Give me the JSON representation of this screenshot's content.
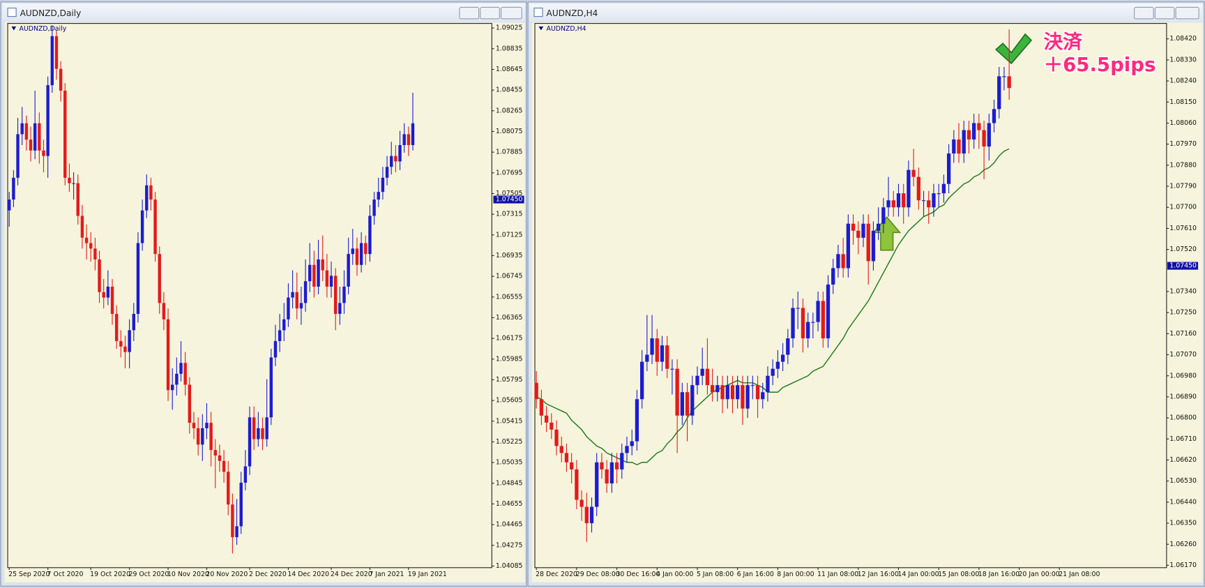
{
  "chart_data": [
    {
      "type": "candlestick",
      "title": "AUDNZD,Daily",
      "up_color": "#1c1ccf",
      "down_color": "#e31b1b",
      "xlim": [
        -0.36,
        112.4
      ],
      "ylim": [
        1.0407,
        1.09067
      ],
      "xticks": [
        {
          "value": 0,
          "label": "25 Sep 2020"
        },
        {
          "value": 9,
          "label": "7 Oct 2020"
        },
        {
          "value": 19,
          "label": "19 Oct 2020"
        },
        {
          "value": 28,
          "label": "29 Oct 2020"
        },
        {
          "value": 37,
          "label": "10 Nov 2020"
        },
        {
          "value": 46,
          "label": "20 Nov 2020"
        },
        {
          "value": 56,
          "label": "2 Dec 2020"
        },
        {
          "value": 65,
          "label": "14 Dec 2020"
        },
        {
          "value": 75,
          "label": "24 Dec 2020"
        },
        {
          "value": 84,
          "label": "7 Jan 2021"
        },
        {
          "value": 93,
          "label": "19 Jan 2021"
        }
      ],
      "yticks": [
        1.09025,
        1.08835,
        1.08645,
        1.08455,
        1.08265,
        1.08075,
        1.07885,
        1.07695,
        1.07505,
        1.07315,
        1.07125,
        1.06935,
        1.06745,
        1.06555,
        1.06365,
        1.06175,
        1.05985,
        1.05795,
        1.05605,
        1.05415,
        1.05225,
        1.05035,
        1.04845,
        1.04655,
        1.04465,
        1.04275,
        1.04085
      ],
      "price_label": {
        "value": 1.0745,
        "label": "1.07450"
      },
      "open": [
        1.0735,
        1.0745,
        1.0765,
        1.0805,
        1.0815,
        1.08,
        1.079,
        1.0815,
        1.079,
        1.0785,
        1.085,
        1.0895,
        1.0865,
        1.0845,
        1.0765,
        1.076,
        1.076,
        1.073,
        1.071,
        1.0705,
        1.07,
        1.069,
        1.066,
        1.0655,
        1.0665,
        1.064,
        1.0615,
        1.061,
        1.0605,
        1.0625,
        1.064,
        1.0705,
        1.0735,
        1.0758,
        1.0745,
        1.0695,
        1.065,
        1.0635,
        1.057,
        1.0575,
        1.0585,
        1.0595,
        1.0575,
        1.054,
        1.0535,
        1.052,
        1.0535,
        1.054,
        1.0515,
        1.051,
        1.0505,
        1.0495,
        1.0465,
        1.0435,
        1.0445,
        1.0485,
        1.05,
        1.0545,
        1.0525,
        1.0535,
        1.0525,
        1.0545,
        1.06,
        1.0615,
        1.0625,
        1.0635,
        1.0655,
        1.066,
        1.0645,
        1.065,
        1.067,
        1.0685,
        1.0665,
        1.069,
        1.068,
        1.0665,
        1.0675,
        1.064,
        1.065,
        1.0665,
        1.0695,
        1.07,
        1.0685,
        1.0705,
        1.0695,
        1.073,
        1.0745,
        1.0752,
        1.0765,
        1.0775,
        1.0785,
        1.078,
        1.0795,
        1.0805,
        1.0795
      ],
      "high": [
        1.0752,
        1.0772,
        1.082,
        1.083,
        1.0822,
        1.0812,
        1.0845,
        1.0825,
        1.08,
        1.0858,
        1.0905,
        1.09,
        1.0872,
        1.0852,
        1.0778,
        1.077,
        1.0768,
        1.074,
        1.0722,
        1.0715,
        1.071,
        1.0698,
        1.0672,
        1.068,
        1.0672,
        1.0648,
        1.0625,
        1.062,
        1.0635,
        1.065,
        1.0715,
        1.0745,
        1.0768,
        1.0765,
        1.0752,
        1.0702,
        1.066,
        1.0645,
        1.059,
        1.06,
        1.0615,
        1.0605,
        1.0582,
        1.055,
        1.0545,
        1.0548,
        1.0558,
        1.055,
        1.0525,
        1.052,
        1.0515,
        1.0505,
        1.0475,
        1.047,
        1.0495,
        1.0515,
        1.0555,
        1.0555,
        1.055,
        1.0545,
        1.058,
        1.0608,
        1.063,
        1.064,
        1.065,
        1.0668,
        1.068,
        1.0678,
        1.0665,
        1.069,
        1.0705,
        1.0698,
        1.0708,
        1.0712,
        1.0695,
        1.0688,
        1.0682,
        1.0665,
        1.068,
        1.071,
        1.0718,
        1.071,
        1.0715,
        1.0712,
        1.074,
        1.0752,
        1.0765,
        1.0775,
        1.0785,
        1.0798,
        1.0795,
        1.0808,
        1.0815,
        1.0812,
        1.0843
      ],
      "low": [
        1.072,
        1.0738,
        1.0758,
        1.0795,
        1.079,
        1.078,
        1.0782,
        1.0778,
        1.077,
        1.0765,
        1.0843,
        1.0855,
        1.0835,
        1.0758,
        1.0752,
        1.0745,
        1.0722,
        1.07,
        1.069,
        1.0688,
        1.068,
        1.065,
        1.0645,
        1.0648,
        1.063,
        1.0608,
        1.06,
        1.059,
        1.059,
        1.0615,
        1.0632,
        1.0698,
        1.0728,
        1.0735,
        1.0688,
        1.064,
        1.0625,
        1.056,
        1.0552,
        1.0565,
        1.0578,
        1.0565,
        1.053,
        1.0525,
        1.051,
        1.0505,
        1.0525,
        1.05,
        1.048,
        1.0495,
        1.0485,
        1.0455,
        1.042,
        1.0428,
        1.0438,
        1.0478,
        1.0492,
        1.0515,
        1.0518,
        1.0515,
        1.0518,
        1.0538,
        1.0592,
        1.0605,
        1.0615,
        1.0628,
        1.0645,
        1.0635,
        1.063,
        1.0642,
        1.066,
        1.0655,
        1.0658,
        1.067,
        1.0655,
        1.0655,
        1.0625,
        1.063,
        1.064,
        1.0658,
        1.0685,
        1.0675,
        1.0678,
        1.0685,
        1.0688,
        1.0722,
        1.0738,
        1.0745,
        1.0758,
        1.0768,
        1.077,
        1.0772,
        1.0788,
        1.0785,
        1.079
      ],
      "close": [
        1.0745,
        1.0765,
        1.0805,
        1.0815,
        1.08,
        1.079,
        1.0815,
        1.079,
        1.0785,
        1.085,
        1.0895,
        1.0865,
        1.0845,
        1.0765,
        1.076,
        1.076,
        1.073,
        1.071,
        1.0705,
        1.07,
        1.069,
        1.066,
        1.0655,
        1.0665,
        1.064,
        1.0615,
        1.061,
        1.0605,
        1.0625,
        1.064,
        1.0705,
        1.0735,
        1.0758,
        1.0745,
        1.0695,
        1.065,
        1.0635,
        1.057,
        1.0575,
        1.0585,
        1.0595,
        1.0575,
        1.054,
        1.0535,
        1.052,
        1.0535,
        1.054,
        1.0515,
        1.051,
        1.0505,
        1.0495,
        1.0465,
        1.0435,
        1.0445,
        1.0485,
        1.05,
        1.0545,
        1.0525,
        1.0535,
        1.0525,
        1.0545,
        1.06,
        1.0615,
        1.0625,
        1.0635,
        1.0655,
        1.066,
        1.0645,
        1.065,
        1.067,
        1.0685,
        1.0665,
        1.069,
        1.068,
        1.0665,
        1.0675,
        1.064,
        1.065,
        1.0665,
        1.0695,
        1.07,
        1.0685,
        1.0705,
        1.0695,
        1.073,
        1.0745,
        1.0752,
        1.0765,
        1.0775,
        1.0785,
        1.078,
        1.0795,
        1.0805,
        1.0795,
        1.0815
      ]
    },
    {
      "type": "candlestick",
      "title": "AUDNZD,H4",
      "up_color": "#1c1ccf",
      "down_color": "#e31b1b",
      "xlim": [
        -0.3,
        125.3
      ],
      "ylim": [
        1.0616,
        1.08486
      ],
      "xticks": [
        {
          "value": 0,
          "label": "28 Dec 2020"
        },
        {
          "value": 8,
          "label": "29 Dec 08:00"
        },
        {
          "value": 16,
          "label": "30 Dec 16:00"
        },
        {
          "value": 24,
          "label": "4 Jan 00:00"
        },
        {
          "value": 32,
          "label": "5 Jan 08:00"
        },
        {
          "value": 40,
          "label": "6 Jan 16:00"
        },
        {
          "value": 48,
          "label": "8 Jan 00:00"
        },
        {
          "value": 56,
          "label": "11 Jan 08:00"
        },
        {
          "value": 64,
          "label": "12 Jan 16:00"
        },
        {
          "value": 72,
          "label": "14 Jan 00:00"
        },
        {
          "value": 80,
          "label": "15 Jan 08:00"
        },
        {
          "value": 88,
          "label": "18 Jan 16:00"
        },
        {
          "value": 96,
          "label": "20 Jan 00:00"
        },
        {
          "value": 104,
          "label": "21 Jan 08:00"
        }
      ],
      "yticks": [
        {
          "value": 1.0842,
          "label": "1.08420"
        },
        {
          "value": 1.0833,
          "label": "1.08330"
        },
        {
          "value": 1.0824,
          "label": "1.08240"
        },
        {
          "value": 1.0815,
          "label": "1.08150"
        },
        {
          "value": 1.0806,
          "label": "1.08060"
        },
        {
          "value": 1.0797,
          "label": "1.07970"
        },
        {
          "value": 1.0788,
          "label": "1.07880"
        },
        {
          "value": 1.0779,
          "label": "1.07790"
        },
        {
          "value": 1.077,
          "label": "1.07700"
        },
        {
          "value": 1.0761,
          "label": "1.07610"
        },
        {
          "value": 1.0752,
          "label": "1.07520"
        },
        {
          "value": 1.0734,
          "label": "1.07340"
        },
        {
          "value": 1.0725,
          "label": "1.07250"
        },
        {
          "value": 1.0716,
          "label": "1.07160"
        },
        {
          "value": 1.0707,
          "label": "1.07070"
        },
        {
          "value": 1.0698,
          "label": "1.06980"
        },
        {
          "value": 1.0689,
          "label": "1.06890"
        },
        {
          "value": 1.068,
          "label": "1.06800"
        },
        {
          "value": 1.0671,
          "label": "1.06710"
        },
        {
          "value": 1.0662,
          "label": "1.06620"
        },
        {
          "value": 1.0653,
          "label": "1.06530"
        },
        {
          "value": 1.0644,
          "label": "1.06440"
        },
        {
          "value": 1.0635,
          "label": "1.06350"
        },
        {
          "value": 1.0626,
          "label": "1.06260"
        },
        {
          "value": 1.0617,
          "label": "1.06170"
        }
      ],
      "price_label": {
        "value": 1.0745,
        "label": "1.07450"
      },
      "annotations": [
        "決済",
        "＋65.5pips"
      ],
      "annotation_color": "#ff2a7f",
      "open": [
        1.0695,
        1.0688,
        1.0681,
        1.0678,
        1.0675,
        1.0668,
        1.0665,
        1.0661,
        1.0658,
        1.0645,
        1.0642,
        1.0635,
        1.0642,
        1.0661,
        1.0658,
        1.0652,
        1.0661,
        1.0658,
        1.0665,
        1.0668,
        1.067,
        1.0688,
        1.0704,
        1.0707,
        1.0714,
        1.0704,
        1.0711,
        1.0701,
        1.0701,
        1.0681,
        1.0691,
        1.0681,
        1.0694,
        1.0698,
        1.0701,
        1.0694,
        1.0691,
        1.0694,
        1.0688,
        1.0694,
        1.0688,
        1.0694,
        1.0684,
        1.0694,
        1.0694,
        1.0688,
        1.0691,
        1.0698,
        1.0701,
        1.0704,
        1.0707,
        1.0714,
        1.0727,
        1.0727,
        1.0714,
        1.0721,
        1.0721,
        1.073,
        1.0714,
        1.0737,
        1.0744,
        1.075,
        1.0744,
        1.0763,
        1.076,
        1.0757,
        1.0763,
        1.0747,
        1.076,
        1.0763,
        1.077,
        1.0773,
        1.077,
        1.0776,
        1.077,
        1.0786,
        1.0783,
        1.0773,
        1.0773,
        1.077,
        1.0776,
        1.0776,
        1.078,
        1.0793,
        1.0799,
        1.0793,
        1.0803,
        1.0799,
        1.0806,
        1.0803,
        1.0796,
        1.0806,
        1.0812,
        1.0826,
        1.0826
      ],
      "high": [
        1.07,
        1.0692,
        1.0685,
        1.0682,
        1.0679,
        1.0672,
        1.0669,
        1.0665,
        1.0662,
        1.0649,
        1.0648,
        1.0646,
        1.0665,
        1.0665,
        1.0662,
        1.0665,
        1.0665,
        1.0669,
        1.0672,
        1.0675,
        1.0692,
        1.0709,
        1.0724,
        1.0724,
        1.0718,
        1.0715,
        1.0715,
        1.0705,
        1.0705,
        1.0695,
        1.0695,
        1.0698,
        1.0702,
        1.071,
        1.0714,
        1.0701,
        1.0698,
        1.0698,
        1.0698,
        1.0698,
        1.0698,
        1.0698,
        1.0698,
        1.0698,
        1.0698,
        1.0695,
        1.0702,
        1.0705,
        1.0709,
        1.0712,
        1.0718,
        1.0731,
        1.0734,
        1.0731,
        1.0725,
        1.0725,
        1.0734,
        1.0734,
        1.0741,
        1.0748,
        1.0754,
        1.0757,
        1.0767,
        1.0767,
        1.0764,
        1.0767,
        1.0767,
        1.0764,
        1.077,
        1.0774,
        1.0783,
        1.0777,
        1.078,
        1.078,
        1.079,
        1.0795,
        1.0787,
        1.0777,
        1.0777,
        1.078,
        1.078,
        1.0784,
        1.0797,
        1.0803,
        1.0806,
        1.0807,
        1.0807,
        1.081,
        1.081,
        1.0807,
        1.081,
        1.0816,
        1.083,
        1.083,
        1.0846
      ],
      "low": [
        1.0684,
        1.0677,
        1.0674,
        1.0671,
        1.0664,
        1.0661,
        1.0657,
        1.0652,
        1.0641,
        1.0636,
        1.0627,
        1.0631,
        1.0638,
        1.0654,
        1.0648,
        1.0648,
        1.0652,
        1.0654,
        1.0661,
        1.0664,
        1.0666,
        1.0684,
        1.07,
        1.0703,
        1.0698,
        1.07,
        1.0697,
        1.069,
        1.0665,
        1.0677,
        1.067,
        1.0677,
        1.069,
        1.0694,
        1.069,
        1.0687,
        1.0687,
        1.0682,
        1.0684,
        1.0682,
        1.0684,
        1.0677,
        1.068,
        1.0688,
        1.068,
        1.0684,
        1.0687,
        1.0694,
        1.0697,
        1.07,
        1.0703,
        1.071,
        1.0718,
        1.0708,
        1.071,
        1.0714,
        1.0717,
        1.071,
        1.071,
        1.0733,
        1.074,
        1.074,
        1.074,
        1.0754,
        1.075,
        1.0753,
        1.0737,
        1.0743,
        1.0756,
        1.0759,
        1.0766,
        1.0766,
        1.0766,
        1.0763,
        1.0766,
        1.0779,
        1.0769,
        1.0766,
        1.0763,
        1.0766,
        1.077,
        1.0772,
        1.0776,
        1.0789,
        1.0789,
        1.0789,
        1.0793,
        1.0795,
        1.0795,
        1.0782,
        1.079,
        1.0802,
        1.0808,
        1.082,
        1.0816
      ],
      "close": [
        1.0688,
        1.0681,
        1.0678,
        1.0675,
        1.0668,
        1.0665,
        1.0661,
        1.0658,
        1.0645,
        1.0642,
        1.0635,
        1.0642,
        1.0661,
        1.0658,
        1.0652,
        1.0661,
        1.0658,
        1.0665,
        1.0668,
        1.067,
        1.0688,
        1.0704,
        1.0707,
        1.0714,
        1.0704,
        1.0711,
        1.0701,
        1.0701,
        1.0681,
        1.0691,
        1.0681,
        1.0694,
        1.0698,
        1.0701,
        1.0694,
        1.0691,
        1.0694,
        1.0688,
        1.0694,
        1.0688,
        1.0694,
        1.0684,
        1.0694,
        1.0694,
        1.0688,
        1.0691,
        1.0698,
        1.0701,
        1.0704,
        1.0707,
        1.0714,
        1.0727,
        1.0727,
        1.0714,
        1.0721,
        1.0721,
        1.073,
        1.0714,
        1.0737,
        1.0744,
        1.075,
        1.0744,
        1.0763,
        1.076,
        1.0757,
        1.0763,
        1.0747,
        1.076,
        1.0763,
        1.077,
        1.0773,
        1.077,
        1.0776,
        1.077,
        1.0786,
        1.0783,
        1.0773,
        1.0773,
        1.077,
        1.0776,
        1.0776,
        1.078,
        1.0793,
        1.0799,
        1.0793,
        1.0803,
        1.0799,
        1.0806,
        1.0803,
        1.0796,
        1.0806,
        1.0812,
        1.0826,
        1.0826,
        1.0821
      ],
      "ma": {
        "color": "#1f7a1f",
        "values": [
          1.0689,
          1.0688,
          1.0686,
          1.0685,
          1.0684,
          1.0683,
          1.0682,
          1.0679,
          1.0677,
          1.0675,
          1.0672,
          1.067,
          1.0668,
          1.0667,
          1.0665,
          1.0664,
          1.0663,
          1.0662,
          1.0661,
          1.0661,
          1.066,
          1.0661,
          1.0661,
          1.0663,
          1.0665,
          1.0666,
          1.0669,
          1.0671,
          1.0674,
          1.0676,
          1.068,
          1.0683,
          1.0685,
          1.0687,
          1.0689,
          1.0691,
          1.0692,
          1.0693,
          1.0694,
          1.0695,
          1.0696,
          1.0695,
          1.0695,
          1.0695,
          1.0694,
          1.0693,
          1.0691,
          1.0691,
          1.0691,
          1.0693,
          1.0694,
          1.0695,
          1.0696,
          1.0697,
          1.0698,
          1.07,
          1.0701,
          1.0702,
          1.0705,
          1.0708,
          1.0711,
          1.0714,
          1.0718,
          1.0721,
          1.0724,
          1.0727,
          1.073,
          1.0734,
          1.0738,
          1.0742,
          1.0746,
          1.075,
          1.0754,
          1.0757,
          1.076,
          1.0762,
          1.0764,
          1.0766,
          1.0767,
          1.0768,
          1.077,
          1.0771,
          1.0774,
          1.0776,
          1.0778,
          1.078,
          1.0781,
          1.0783,
          1.0784,
          1.0786,
          1.0787,
          1.0789,
          1.0792,
          1.0794,
          1.0795
        ]
      }
    }
  ]
}
